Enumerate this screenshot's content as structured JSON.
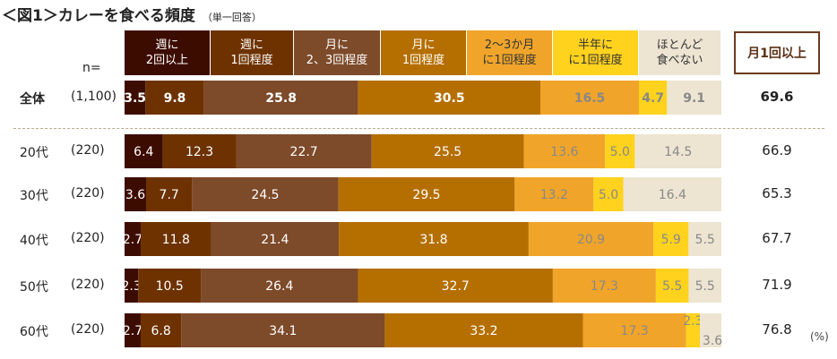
{
  "title": "＜図1＞カレーを食べる頻度",
  "subtitle": "（単一回答）",
  "n_header": "n=",
  "unit_label": "(%)",
  "summary_header": "月1回以上",
  "colors": [
    "#3d0c00",
    "#6e3200",
    "#7d4a2a",
    "#b56f00",
    "#f0a52a",
    "#ffd21e",
    "#ede5d2"
  ],
  "text_colors": [
    "#ffffff",
    "#ffffff",
    "#ffffff",
    "#ffffff",
    "#888888",
    "#888888",
    "#888888"
  ],
  "chart_data": {
    "type": "bar",
    "stacked": true,
    "orientation": "horizontal",
    "categories": [
      {
        "label": "全体",
        "n": "(1,100)",
        "bold": true,
        "summary": "69.6"
      },
      {
        "label": "20代",
        "n": "(220)",
        "summary": "66.9"
      },
      {
        "label": "30代",
        "n": "(220)",
        "summary": "65.3"
      },
      {
        "label": "40代",
        "n": "(220)",
        "summary": "67.7"
      },
      {
        "label": "50代",
        "n": "(220)",
        "summary": "71.9"
      },
      {
        "label": "60代",
        "n": "(220)",
        "summary": "76.8"
      }
    ],
    "series": [
      {
        "name": "週に\n2回以上",
        "values": [
          3.5,
          6.4,
          3.6,
          2.7,
          2.3,
          2.7
        ]
      },
      {
        "name": "週に\n1回程度",
        "values": [
          9.8,
          12.3,
          7.7,
          11.8,
          10.5,
          6.8
        ]
      },
      {
        "name": "月に\n2、3回程度",
        "values": [
          25.8,
          22.7,
          24.5,
          21.4,
          26.4,
          34.1
        ]
      },
      {
        "name": "月に\n1回程度",
        "values": [
          30.5,
          25.5,
          29.5,
          31.8,
          32.7,
          33.2
        ]
      },
      {
        "name": "2～3か月\nに1回程度",
        "values": [
          16.5,
          13.6,
          13.2,
          20.9,
          17.3,
          17.3
        ]
      },
      {
        "name": "半年に\nに1回程度",
        "values": [
          4.7,
          5.0,
          5.0,
          5.9,
          5.5,
          2.3
        ]
      },
      {
        "name": "ほとんど\n食べない",
        "values": [
          9.1,
          14.5,
          16.4,
          5.5,
          5.5,
          3.6
        ]
      }
    ],
    "xlim": [
      0,
      100
    ]
  }
}
